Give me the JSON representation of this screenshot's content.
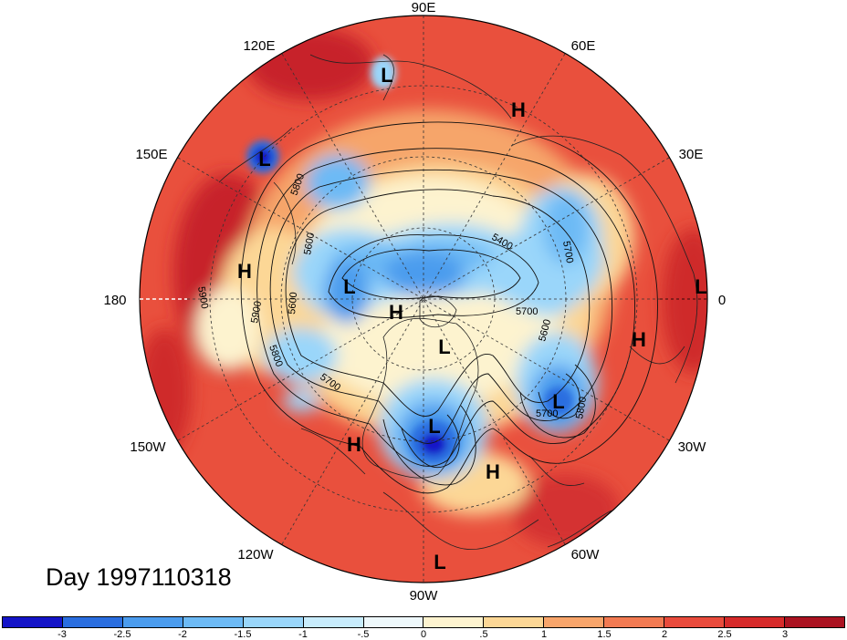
{
  "date_label": "Day 1997110318",
  "longitude_labels": {
    "e90": "90E",
    "e120": "120E",
    "e60": "60E",
    "e150": "150E",
    "e30": "30E",
    "e180": "180",
    "e0": "0",
    "w150": "150W",
    "w30": "30W",
    "w120": "120W",
    "w60": "60W",
    "w90": "90W"
  },
  "pressure_centers": [
    {
      "label": "L"
    },
    {
      "label": "H"
    },
    {
      "label": "L"
    },
    {
      "label": "H"
    },
    {
      "label": "L"
    },
    {
      "label": "H"
    },
    {
      "label": "L"
    },
    {
      "label": "L"
    },
    {
      "label": "H"
    },
    {
      "label": "L"
    },
    {
      "label": "H"
    },
    {
      "label": "H"
    },
    {
      "label": "L"
    },
    {
      "label": "L"
    }
  ],
  "contour_labels": [
    "5800",
    "5600",
    "5400",
    "5700",
    "5900",
    "5600",
    "5800",
    "5700",
    "5900",
    "5600",
    "5700",
    "5800",
    "5700"
  ],
  "colorbar": {
    "ticks": [
      "-3",
      "-2.5",
      "-2",
      "-1.5",
      "-1",
      "-.5",
      "0",
      ".5",
      "1",
      "1.5",
      "2",
      "2.5",
      "3"
    ],
    "colors": [
      "#1414c8",
      "#2a6ee0",
      "#4b9cee",
      "#6dbaf5",
      "#9ad6fa",
      "#c8ecfc",
      "#eef8fb",
      "#fdf3cf",
      "#fcd796",
      "#f8a56b",
      "#f27a52",
      "#e94b3c",
      "#d62a2a",
      "#ab1321"
    ]
  }
}
